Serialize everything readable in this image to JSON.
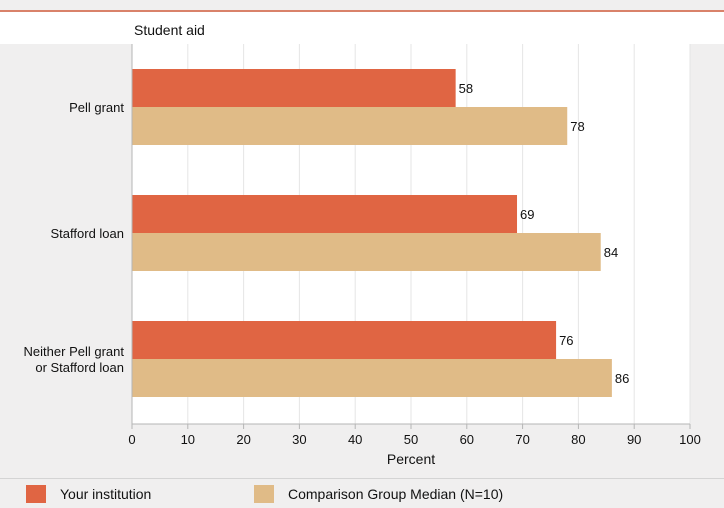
{
  "colors": {
    "page_bg": "#f0efef",
    "plot_bg": "#ffffff",
    "grid": "#e5e5e5",
    "axis": "#b5b5b5",
    "institution": "#e06543",
    "comparison": "#e0bb87",
    "top_rule": "#d9826a"
  },
  "legend": {
    "institution_label": "Your institution",
    "comparison_label": "Comparison Group Median (N=10)"
  },
  "chart_data": {
    "type": "bar",
    "orientation": "horizontal",
    "title": "Student aid",
    "xlabel": "Percent",
    "ylabel": "",
    "xlim": [
      0,
      100
    ],
    "x_ticks": [
      0,
      10,
      20,
      30,
      40,
      50,
      60,
      70,
      80,
      90,
      100
    ],
    "grid": true,
    "legend_position": "bottom",
    "categories": [
      [
        "Pell grant"
      ],
      [
        "Stafford loan"
      ],
      [
        "Neither Pell grant",
        "or Stafford loan"
      ]
    ],
    "series": [
      {
        "name": "Your institution",
        "values": [
          58,
          69,
          76
        ]
      },
      {
        "name": "Comparison Group Median (N=10)",
        "values": [
          78,
          84,
          86
        ]
      }
    ]
  }
}
